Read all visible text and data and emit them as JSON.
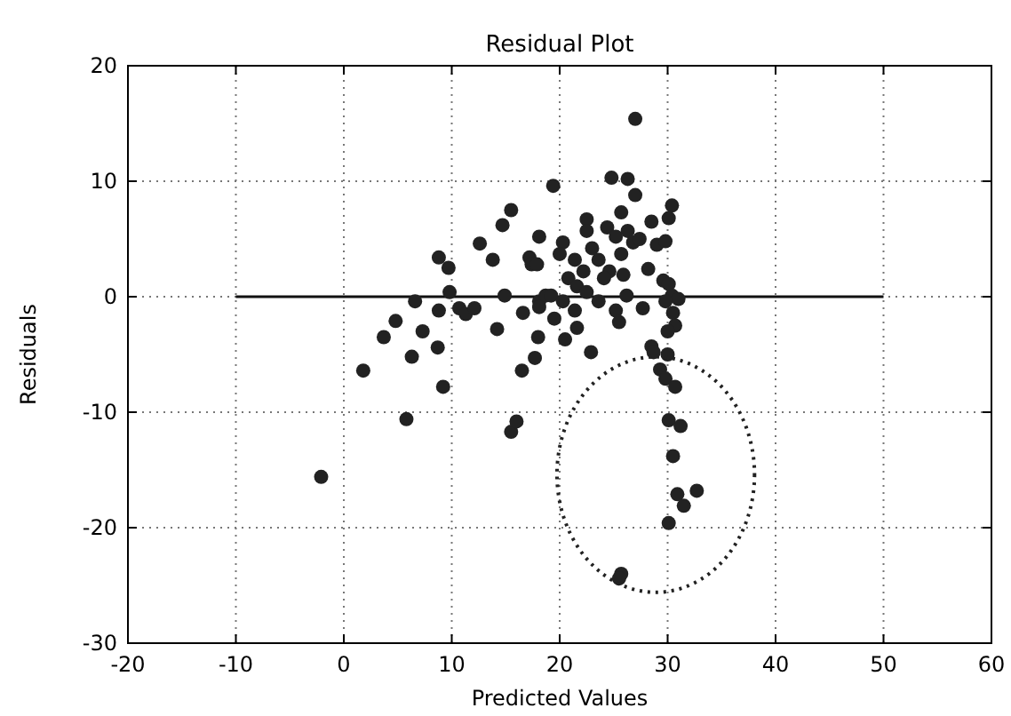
{
  "chart_data": {
    "type": "scatter",
    "title": "Residual Plot",
    "xlabel": "Predicted Values",
    "ylabel": "Residuals",
    "xlim": [
      -20,
      60
    ],
    "ylim": [
      -30,
      20
    ],
    "xticks": [
      -20,
      -10,
      0,
      10,
      20,
      30,
      40,
      50,
      60
    ],
    "yticks": [
      -30,
      -20,
      -10,
      0,
      10,
      20
    ],
    "grid": true,
    "marker": "circle",
    "series": [
      {
        "type": "line",
        "color": "#111111",
        "marker": "none",
        "line_style": "solid",
        "x": [
          -10,
          50
        ],
        "values": [
          0,
          0
        ]
      },
      {
        "color": "#222222",
        "x": [
          -2.1,
          1.8,
          3.7,
          4.8,
          5.8,
          6.3,
          6.6,
          7.3,
          8.7,
          8.8,
          8.8,
          9.2,
          9.7,
          9.8,
          10.7,
          11.3,
          12.1,
          12.6,
          13.8,
          14.2,
          14.7,
          14.9,
          15.5,
          15.5,
          16.0,
          16.5,
          16.6,
          17.2,
          17.4,
          17.9,
          17.7,
          18.0,
          18.1,
          18.1,
          18.7,
          19.4,
          27.0,
          24.8,
          26.3,
          27.0,
          30.4,
          30.1,
          22.5,
          25.7,
          28.5,
          22.5,
          24.4,
          25.2,
          26.3,
          26.8,
          27.4,
          29.0,
          29.8,
          20.3,
          20.0,
          21.4,
          23.0,
          23.6,
          25.7,
          24.6,
          25.9,
          20.8,
          22.2,
          24.1,
          28.2,
          29.6,
          30.1,
          30.4,
          31.0,
          29.8,
          19.2,
          20.3,
          21.6,
          22.5,
          23.6,
          26.2,
          18.1,
          19.5,
          21.4,
          21.6,
          25.2,
          25.5,
          27.7,
          30.5,
          30.7,
          30.0,
          20.5,
          22.9,
          28.5,
          28.7,
          30.0,
          29.3,
          29.8,
          30.7,
          30.1,
          31.2,
          30.5,
          30.9,
          31.5,
          32.7,
          30.1,
          25.7,
          25.5
        ],
        "values": [
          -15.6,
          -6.4,
          -3.5,
          -2.1,
          -10.6,
          -5.2,
          -0.4,
          -3.0,
          -4.4,
          3.4,
          -1.2,
          -7.8,
          2.5,
          0.4,
          -1.0,
          -1.5,
          -1.0,
          4.6,
          3.2,
          -2.8,
          6.2,
          0.1,
          7.5,
          -11.7,
          -10.8,
          -6.4,
          -1.4,
          3.4,
          2.8,
          2.8,
          -5.3,
          -3.5,
          5.2,
          -0.4,
          0.1,
          9.6,
          15.4,
          10.3,
          10.2,
          8.8,
          7.9,
          6.8,
          6.7,
          7.3,
          6.5,
          5.7,
          6.0,
          5.2,
          5.7,
          4.7,
          5.0,
          4.5,
          4.8,
          4.7,
          3.7,
          3.2,
          4.2,
          3.2,
          3.7,
          2.2,
          1.9,
          1.6,
          2.2,
          1.6,
          2.4,
          1.4,
          1.1,
          0.1,
          -0.2,
          -0.4,
          0.1,
          -0.4,
          0.9,
          0.4,
          -0.4,
          0.1,
          -0.9,
          -1.9,
          -1.2,
          -2.7,
          -1.2,
          -2.2,
          -1.0,
          -1.4,
          -2.5,
          -3.0,
          -3.7,
          -4.8,
          -4.3,
          -4.8,
          -5.0,
          -6.3,
          -7.1,
          -7.8,
          -10.7,
          -11.2,
          -13.8,
          -17.1,
          -18.1,
          -16.8,
          -19.6,
          -24.0,
          -24.4
        ]
      }
    ]
  }
}
